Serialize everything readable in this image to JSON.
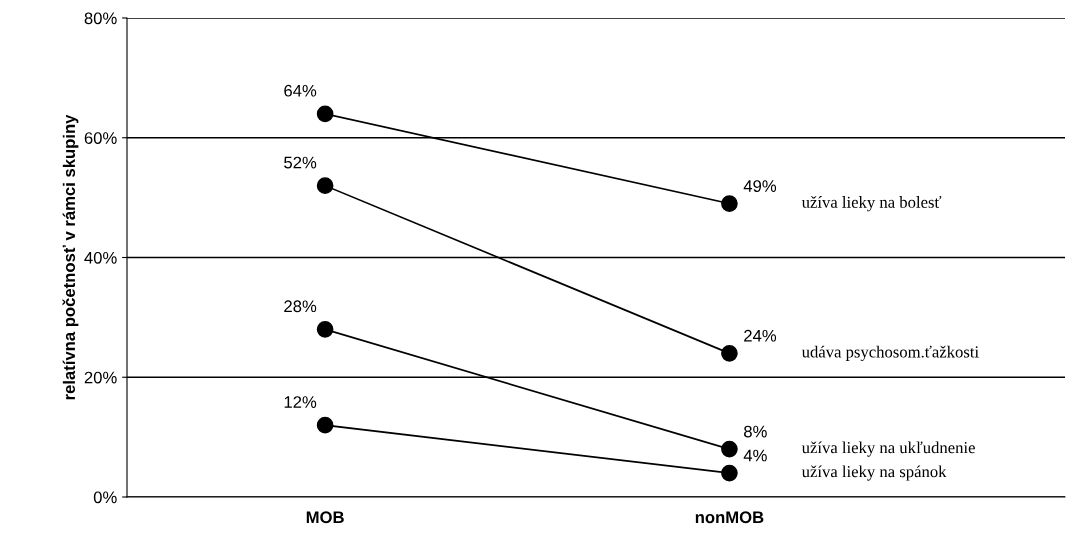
{
  "chart_data": {
    "type": "line",
    "ylabel": "relatívna početnosť v rámci skupiny",
    "categories": [
      "MOB",
      "nonMOB"
    ],
    "series": [
      {
        "name": "užíva lieky na bolesť",
        "color": "#000000",
        "values": [
          64,
          49
        ],
        "value_labels": [
          "64%",
          "49%"
        ]
      },
      {
        "name": "udáva psychosom.ťažkosti",
        "color": "#000000",
        "values": [
          52,
          24
        ],
        "value_labels": [
          "52%",
          "24%"
        ]
      },
      {
        "name": "užíva lieky na ukľudnenie",
        "color": "#000000",
        "values": [
          28,
          8
        ],
        "value_labels": [
          "28%",
          "8%"
        ]
      },
      {
        "name": "užíva lieky na spánok",
        "color": "#000000",
        "values": [
          12,
          4
        ],
        "value_labels": [
          "12%",
          "4%"
        ]
      }
    ],
    "ylim": [
      0,
      80
    ],
    "yticks": [
      {
        "value": 0,
        "label": "0%"
      },
      {
        "value": 20,
        "label": "20%"
      },
      {
        "value": 40,
        "label": "40%"
      },
      {
        "value": 60,
        "label": "60%"
      },
      {
        "value": 80,
        "label": "80%"
      }
    ],
    "grid": "y",
    "marker": "circle",
    "line_style": "solid",
    "legend": false
  }
}
